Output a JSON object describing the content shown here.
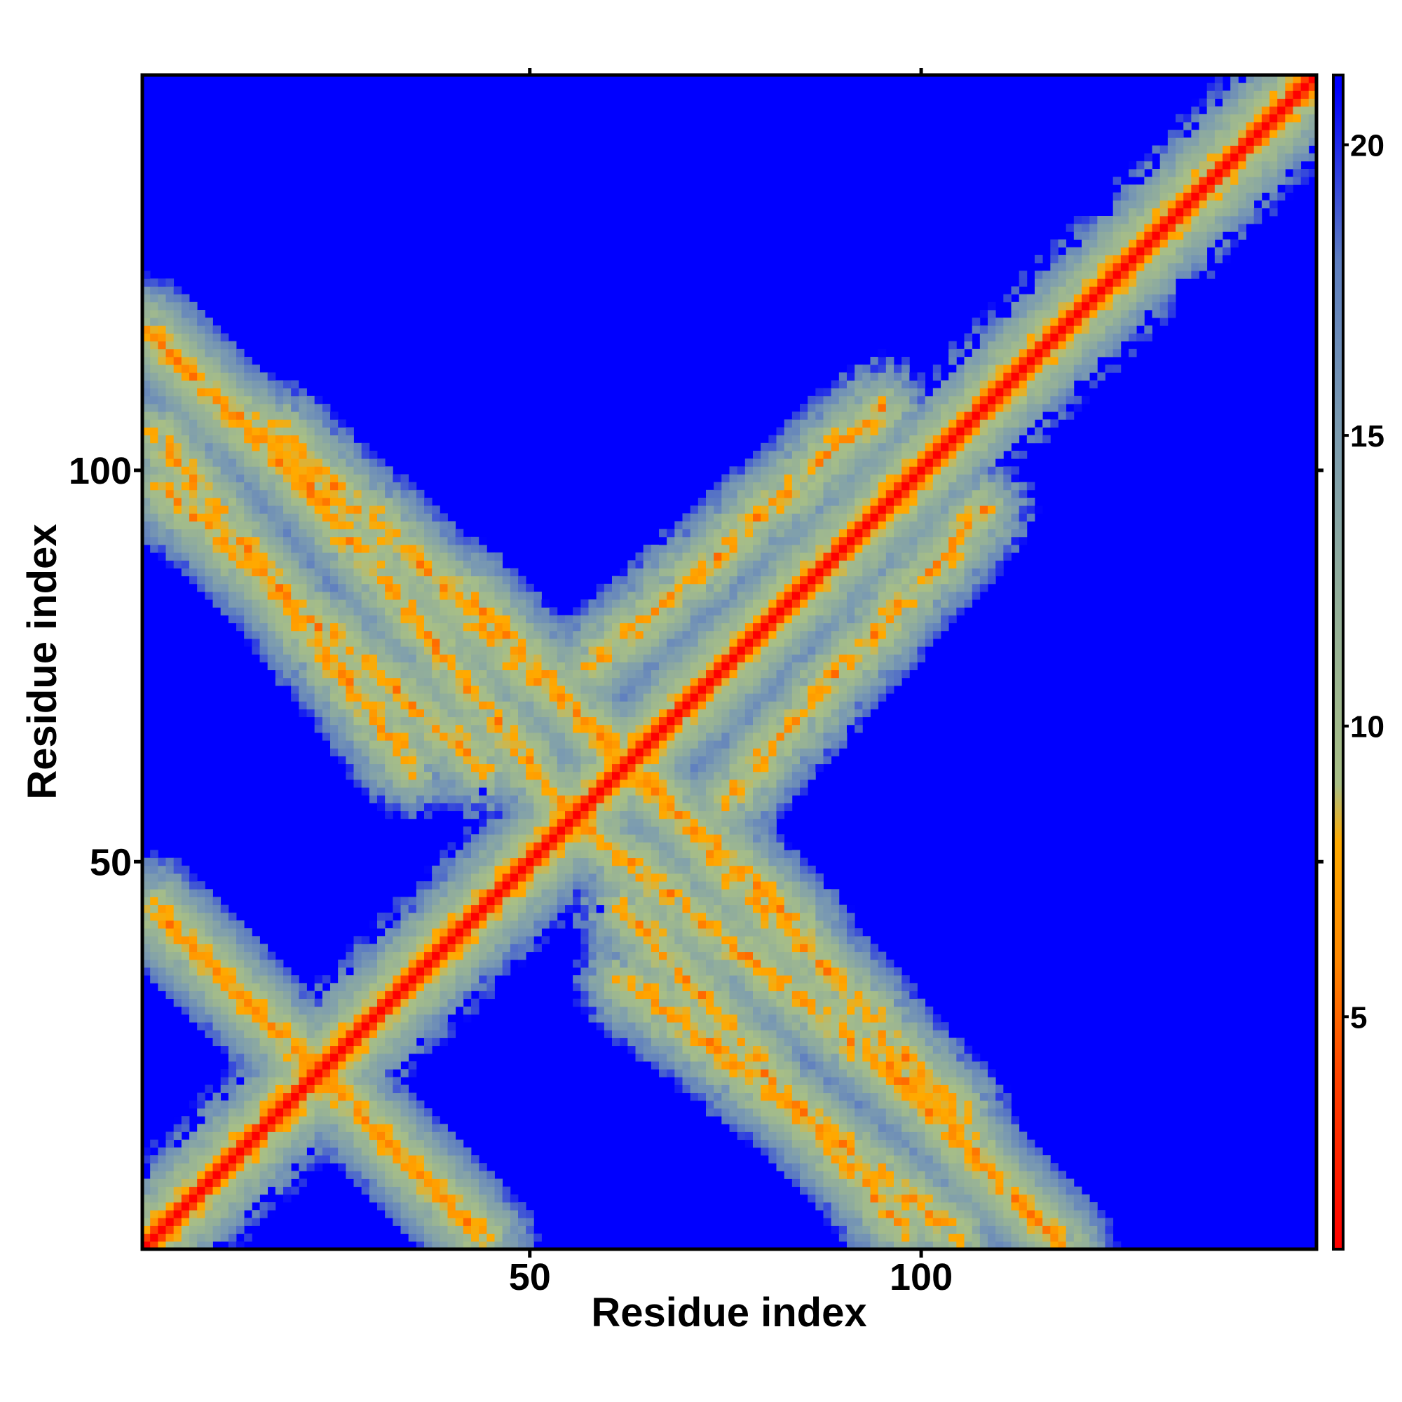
{
  "chart_data": {
    "type": "heatmap",
    "xlabel": "Residue index",
    "ylabel": "Residue index",
    "xlim": [
      1,
      150
    ],
    "ylim": [
      1,
      150
    ],
    "x_ticks": [
      50,
      100
    ],
    "y_ticks": [
      50,
      100
    ],
    "x_tick_labels": [
      "50",
      "100"
    ],
    "y_tick_labels": [
      "50",
      "100"
    ],
    "colorbar": {
      "range": [
        1,
        21.2
      ],
      "ticks": [
        5,
        10,
        15,
        20
      ],
      "tick_labels": [
        "5",
        "10",
        "15",
        "20"
      ],
      "stops": [
        {
          "value": 1,
          "color": "#ff0000"
        },
        {
          "value": 4,
          "color": "#ff4400"
        },
        {
          "value": 6,
          "color": "#ff8800"
        },
        {
          "value": 8,
          "color": "#ffaa00"
        },
        {
          "value": 9,
          "color": "#a8bf86"
        },
        {
          "value": 12,
          "color": "#94b099"
        },
        {
          "value": 15,
          "color": "#7c9cb0"
        },
        {
          "value": 18,
          "color": "#5e7ec0"
        },
        {
          "value": 21,
          "color": "#0000ff"
        }
      ]
    },
    "background_value": 21,
    "background_color": "#0000ff",
    "diagonal": {
      "from": 1,
      "to": 150,
      "value": 3.8
    },
    "contact_features": [
      {
        "kind": "antiparallel",
        "i_range": [
          2,
          44
        ],
        "j_range": [
          2,
          44
        ]
      },
      {
        "kind": "antiparallel",
        "i_range": [
          20,
          56
        ],
        "j_range": [
          55,
          100
        ]
      },
      {
        "kind": "antiparallel",
        "i_range": [
          41,
          105
        ],
        "j_range": [
          18,
          85
        ]
      },
      {
        "kind": "antiparallel",
        "i_range": [
          62,
          98
        ],
        "j_range": [
          3,
          44
        ]
      },
      {
        "kind": "antiparallel",
        "i_range": [
          2,
          35
        ],
        "j_range": [
          62,
          105
        ]
      },
      {
        "kind": "antiparallel",
        "i_range": [
          95,
          118
        ],
        "j_range": [
          1,
          25
        ]
      },
      {
        "kind": "antiparallel",
        "i_range": [
          1,
          24
        ],
        "j_range": [
          95,
          118
        ]
      },
      {
        "kind": "parallel",
        "i_range": [
          38,
          75
        ],
        "j_range": [
          38,
          75
        ]
      },
      {
        "kind": "parallel",
        "i_range": [
          75,
          108
        ],
        "j_range": [
          58,
          95
        ]
      }
    ],
    "grid": false,
    "legend": "colorbar-right"
  }
}
